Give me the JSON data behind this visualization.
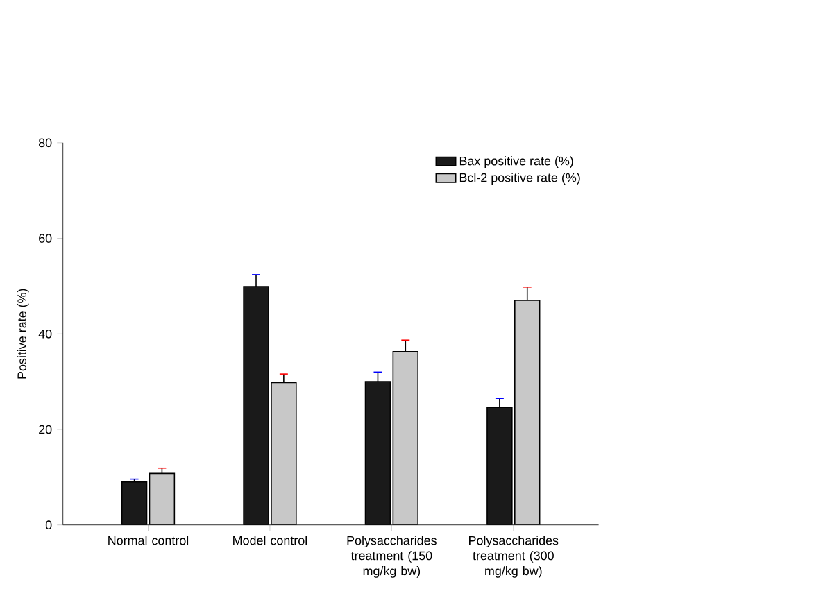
{
  "chart_data": {
    "type": "bar",
    "ylabel": "Positive rate (%)",
    "categories": [
      "Normal control",
      "Model control",
      "Polysaccharides treatment (150 mg/kg bw)",
      "Polysaccharides treatment (300 mg/kg bw)"
    ],
    "series": [
      {
        "name": "Bax positive rate (%)",
        "color": "#1a1a1a",
        "values": [
          9.0,
          49.9,
          30.0,
          24.6
        ],
        "errors": [
          0.6,
          2.5,
          2.0,
          1.9
        ]
      },
      {
        "name": "Bcl-2 positive rate (%)",
        "color": "#c8c8c8",
        "values": [
          10.8,
          29.8,
          36.3,
          47.0
        ],
        "errors": [
          1.1,
          1.8,
          2.4,
          2.8
        ]
      }
    ],
    "ylim": [
      0,
      80
    ],
    "yticks": [
      0,
      20,
      40,
      60,
      80
    ],
    "legend": "top right"
  }
}
